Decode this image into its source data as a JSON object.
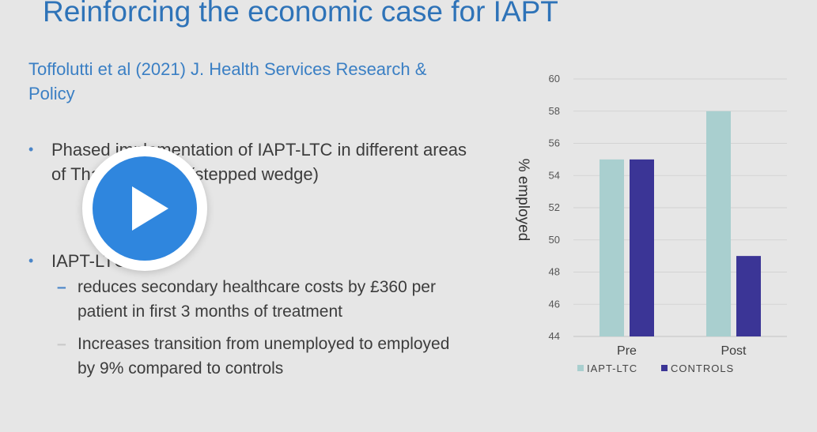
{
  "slide": {
    "title": "Reinforcing the economic case for IAPT",
    "citation": "Toffolutti et al (2021) J. Health Services Research & Policy",
    "bullets": [
      {
        "text": "Phased implementation of IAPT-LTC in different areas of Thames Valley (stepped wedge)"
      },
      {
        "text": "IAPT-LTC"
      }
    ],
    "subbullets": [
      {
        "text": "reduces secondary healthcare costs by £360 per patient in first 3 months of treatment"
      },
      {
        "text": "Increases transition from unemployed to employed by 9% compared to controls"
      }
    ]
  },
  "player": {
    "icon": "play-icon"
  },
  "colors": {
    "title": "#2e73b8",
    "series_iapt": "#a9cfcf",
    "series_controls": "#3b3596",
    "play": "#2f86de"
  },
  "chart_data": {
    "type": "bar",
    "categories": [
      "Pre",
      "Post"
    ],
    "series": [
      {
        "name": "IAPT-LTC",
        "values": [
          55,
          58
        ]
      },
      {
        "name": "CONTROLS",
        "values": [
          55,
          49
        ]
      }
    ],
    "ylabel": "% employed",
    "ylim": [
      44,
      60
    ],
    "yticks": [
      44,
      46,
      48,
      50,
      52,
      54,
      56,
      58,
      60
    ],
    "grid": true,
    "legend": "bottom"
  }
}
